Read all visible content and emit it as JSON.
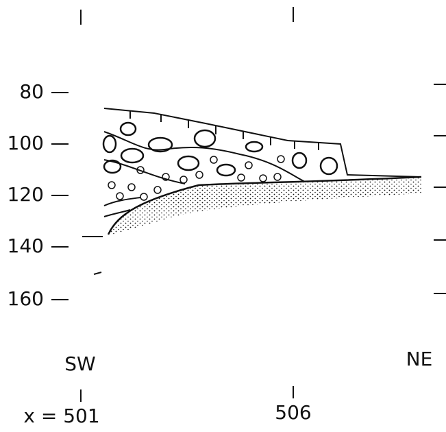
{
  "depth_scale": {
    "labels": [
      "80",
      "100",
      "120",
      "140",
      "160"
    ]
  },
  "directions": {
    "left": "SW",
    "right": "NE"
  },
  "grid_x": {
    "left": "x = 501",
    "right": "506"
  }
}
